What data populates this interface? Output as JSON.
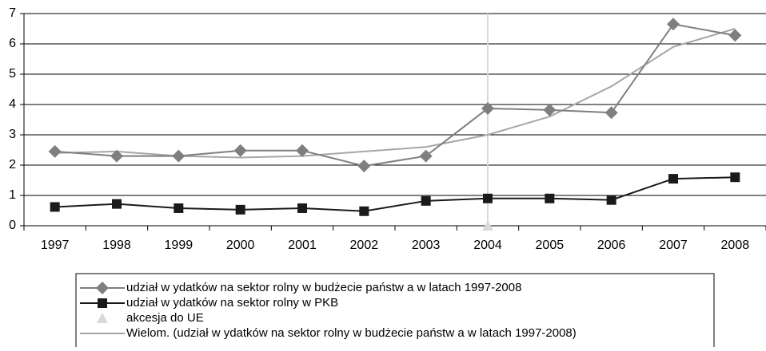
{
  "chart_data": {
    "type": "line",
    "categories": [
      "1997",
      "1998",
      "1999",
      "2000",
      "2001",
      "2002",
      "2003",
      "2004",
      "2005",
      "2006",
      "2007",
      "2008"
    ],
    "series": [
      {
        "name": "udział w ydatków na sektor rolny w budżecie państw a w latach 1997-2008",
        "color": "#7f7f7f",
        "marker": "diamond",
        "values": [
          2.45,
          2.3,
          2.3,
          2.48,
          2.48,
          1.97,
          2.3,
          3.87,
          3.82,
          3.73,
          6.65,
          6.28
        ]
      },
      {
        "name": "udział w ydatków na sektor rolny w PKB",
        "color": "#1a1a1a",
        "marker": "square",
        "values": [
          0.62,
          0.72,
          0.58,
          0.53,
          0.58,
          0.48,
          0.82,
          0.9,
          0.9,
          0.85,
          1.55,
          1.6
        ]
      },
      {
        "name": "akcesja do UE",
        "color": "#d9d9d9",
        "marker": "triangle",
        "values": [
          null,
          null,
          null,
          null,
          null,
          null,
          null,
          0,
          null,
          null,
          null,
          null
        ]
      },
      {
        "name": "Wielom. (udział w ydatków na sektor rolny w budżecie państw a w latach 1997-2008)",
        "color": "#a6a6a6",
        "marker": "none",
        "values": [
          2.4,
          2.45,
          2.3,
          2.25,
          2.3,
          2.45,
          2.6,
          3.0,
          3.6,
          4.6,
          5.9,
          6.5
        ]
      }
    ],
    "ylim": [
      0,
      7
    ],
    "yticks": [
      0,
      1,
      2,
      3,
      4,
      5,
      6,
      7
    ],
    "grid": true,
    "legend": "bottom"
  }
}
